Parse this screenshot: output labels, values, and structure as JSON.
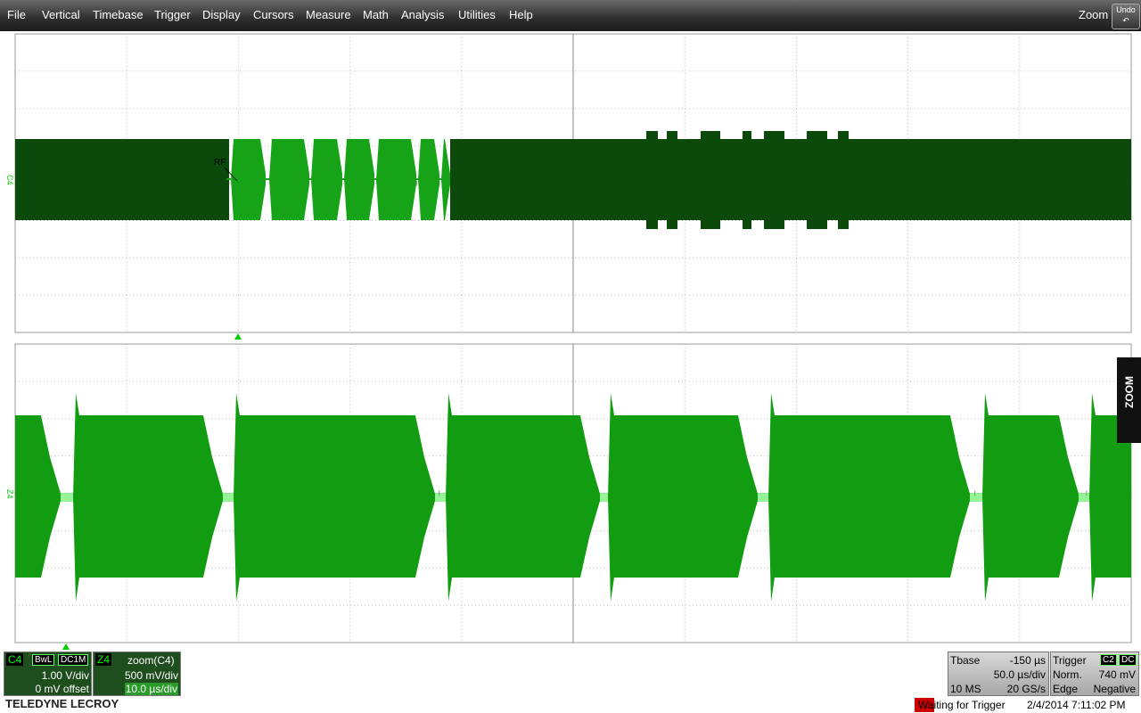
{
  "menu": {
    "items": [
      "File",
      "Vertical",
      "Timebase",
      "Trigger",
      "Display",
      "Cursors",
      "Measure",
      "Math",
      "Analysis",
      "Utilities",
      "Help"
    ],
    "zoom": "Zoom",
    "undo": "Undo"
  },
  "grid": {
    "top_label": "C4",
    "bottom_label": "Z4",
    "annotation": "RF",
    "side_tab": "ZOOM"
  },
  "channels": [
    {
      "name": "C4",
      "tags": [
        "BwL",
        "DC1M"
      ],
      "scale": "1.00 V/div",
      "offset": "0 mV offset"
    },
    {
      "name": "Z4",
      "source": "zoom(C4)",
      "scale": "500 mV/div",
      "timebase": "10.0 µs/div"
    }
  ],
  "timebase": {
    "label": "Tbase",
    "delay": "-150 µs",
    "scale": "50.0 µs/div",
    "samples": "10 MS",
    "rate": "20 GS/s"
  },
  "trigger": {
    "label": "Trigger",
    "source": "C2",
    "coupling": "DC",
    "mode": "Norm.",
    "level": "740 mV",
    "type": "Edge",
    "slope": "Negative"
  },
  "footer": {
    "brand": "TELEDYNE LECROY",
    "status": "Waiting for Trigger",
    "timestamp": "2/4/2014 7:11:02 PM"
  }
}
